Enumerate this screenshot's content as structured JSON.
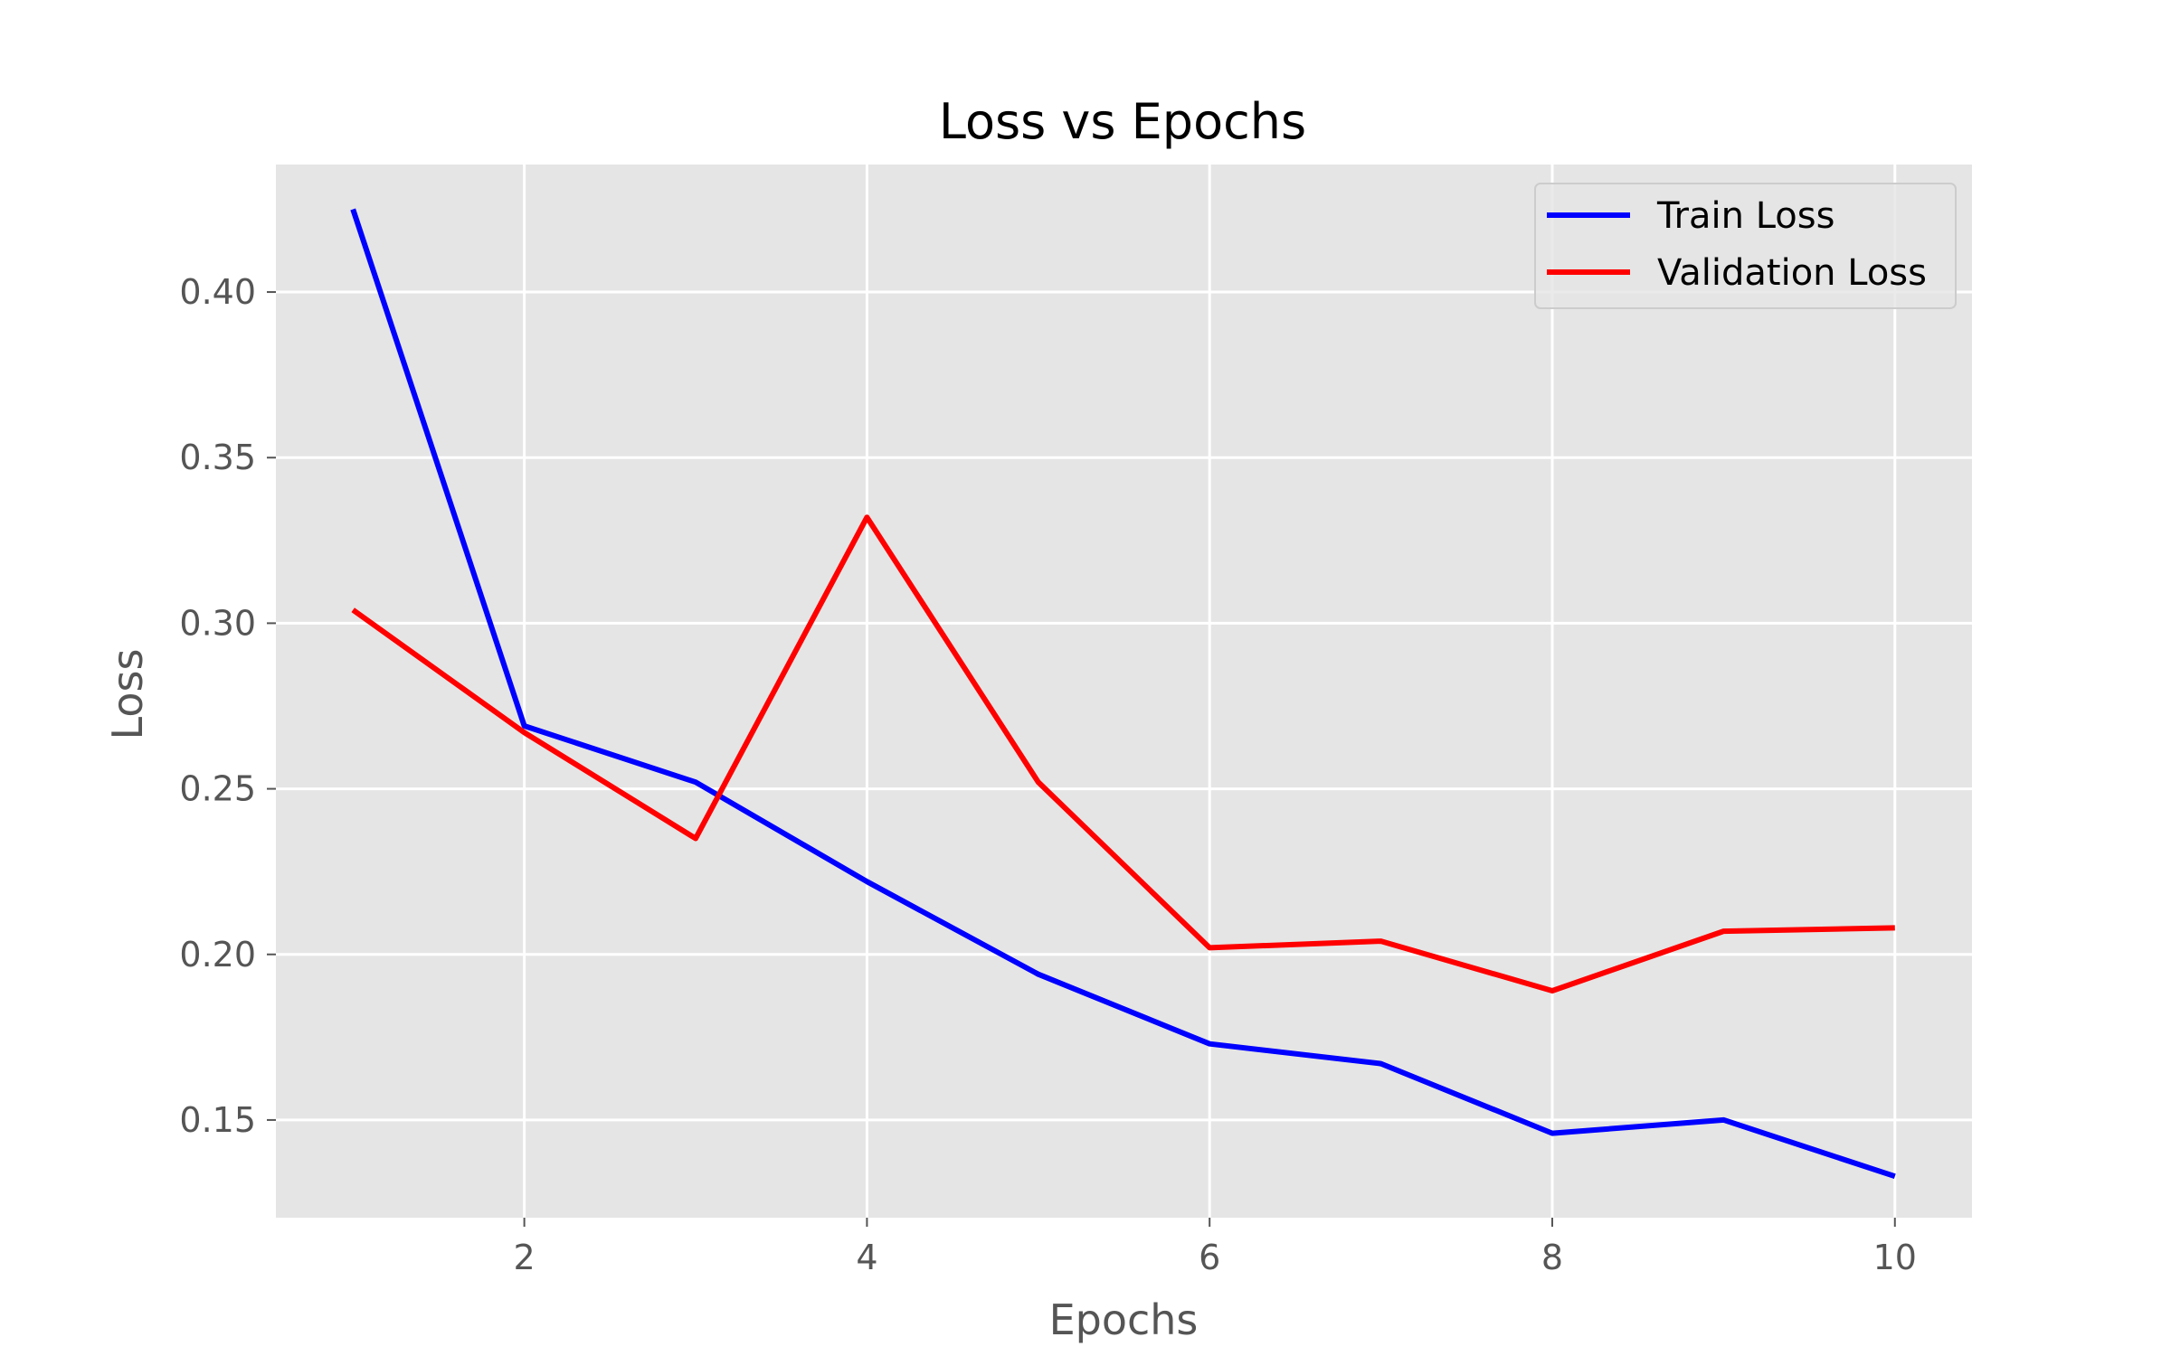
{
  "chart_data": {
    "type": "line",
    "title": "Loss vs Epochs",
    "xlabel": "Epochs",
    "ylabel": "Loss",
    "x": [
      1,
      2,
      3,
      4,
      5,
      6,
      7,
      8,
      9,
      10
    ],
    "xlim": [
      0.55,
      10.45
    ],
    "ylim": [
      0.1205,
      0.4385
    ],
    "xticks": [
      2,
      4,
      6,
      8,
      10
    ],
    "xtick_labels": [
      "2",
      "4",
      "6",
      "8",
      "10"
    ],
    "yticks": [
      0.15,
      0.2,
      0.25,
      0.3,
      0.35,
      0.4
    ],
    "ytick_labels": [
      "0.15",
      "0.20",
      "0.25",
      "0.30",
      "0.35",
      "0.40"
    ],
    "grid": true,
    "legend_position": "top-right",
    "series": [
      {
        "name": "Train Loss",
        "color": "#0000ff",
        "values": [
          0.425,
          0.269,
          0.252,
          0.222,
          0.194,
          0.173,
          0.167,
          0.146,
          0.15,
          0.133
        ]
      },
      {
        "name": "Validation Loss",
        "color": "#ff0000",
        "values": [
          0.304,
          0.267,
          0.235,
          0.332,
          0.252,
          0.202,
          0.204,
          0.189,
          0.207,
          0.208
        ]
      }
    ]
  }
}
